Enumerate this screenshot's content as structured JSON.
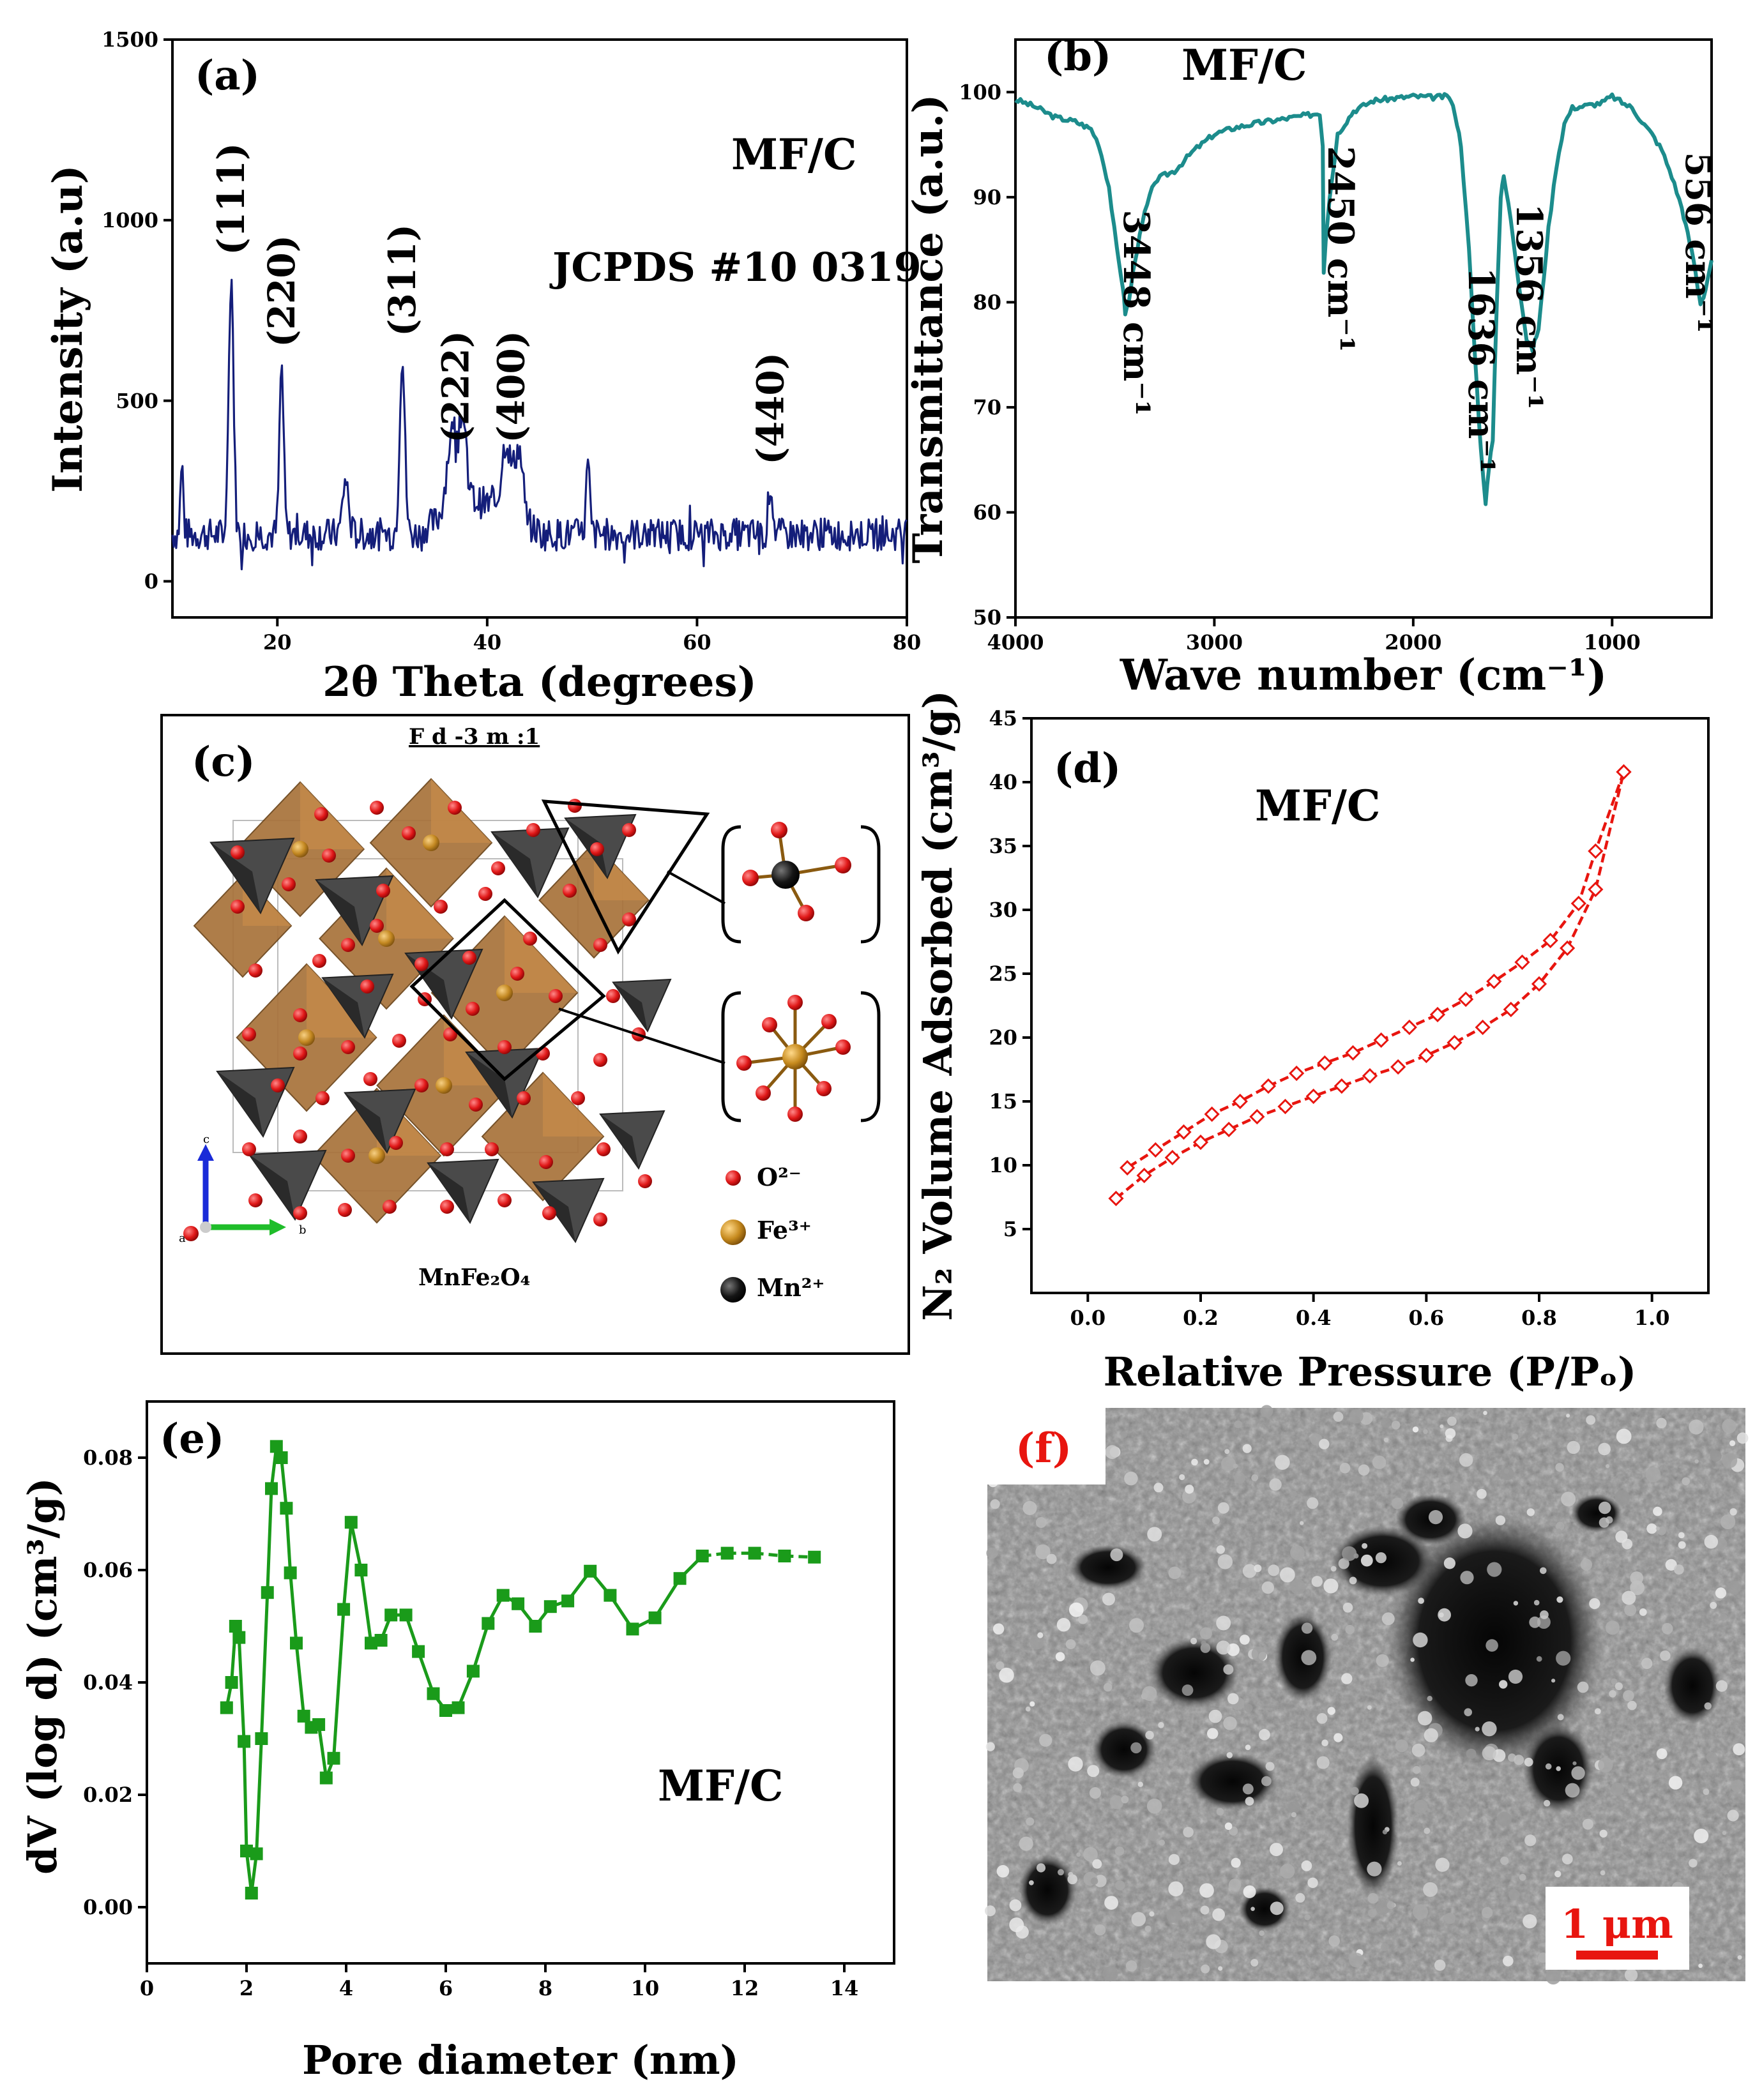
{
  "chart_data": [
    {
      "panel_label": "(a)",
      "type": "line",
      "sample_label": "MF/C",
      "reference": "JCPDS #10 0319",
      "xlabel": "2θ Theta (degrees)",
      "ylabel": "Intensity (a.u)",
      "xlim": [
        10,
        80
      ],
      "ylim": [
        -100,
        1500
      ],
      "xticks": [
        20,
        40,
        60,
        80
      ],
      "yticks": [
        0,
        500,
        1000,
        1500
      ],
      "color": "#141E7A",
      "baseline": 130,
      "noise": 45,
      "peaks": [
        {
          "x": 10.9,
          "y": 320,
          "w": 0.2
        },
        {
          "x": 15.6,
          "y": 850,
          "w": 0.32
        },
        {
          "x": 20.4,
          "y": 595,
          "w": 0.28
        },
        {
          "x": 26.5,
          "y": 280,
          "w": 0.4
        },
        {
          "x": 31.9,
          "y": 625,
          "w": 0.35
        },
        {
          "x": 36.6,
          "y": 330,
          "w": 0.7
        },
        {
          "x": 37.6,
          "y": 350,
          "w": 0.6
        },
        {
          "x": 41.8,
          "y": 330,
          "w": 0.6
        },
        {
          "x": 43.0,
          "y": 330,
          "w": 0.6
        },
        {
          "x": 49.6,
          "y": 320,
          "w": 0.25
        },
        {
          "x": 67.0,
          "y": 270,
          "w": 0.3
        }
      ],
      "annotations": [
        {
          "text": "(111)",
          "x": 15.6
        },
        {
          "text": "(220)",
          "x": 20.4
        },
        {
          "text": "(311)",
          "x": 31.9
        },
        {
          "text": "(222)",
          "x": 37.0
        },
        {
          "text": "(400)",
          "x": 42.3
        },
        {
          "text": "(440)",
          "x": 67.0
        }
      ]
    },
    {
      "panel_label": "(b)",
      "type": "line",
      "sample_label": "MF/C",
      "xlabel": "Wave number (cm⁻¹)",
      "ylabel": "Transmittance (a.u.)",
      "xlim": [
        4000,
        500
      ],
      "ylim": [
        50,
        105
      ],
      "xticks": [
        4000,
        3000,
        2000,
        1000
      ],
      "yticks": [
        50,
        60,
        70,
        80,
        90,
        100
      ],
      "color": "#1C8C8C",
      "points": [
        [
          4000,
          99.3
        ],
        [
          3900,
          98.6
        ],
        [
          3800,
          97.6
        ],
        [
          3700,
          97.2
        ],
        [
          3620,
          96.5
        ],
        [
          3580,
          95.0
        ],
        [
          3530,
          91.0
        ],
        [
          3490,
          85.0
        ],
        [
          3460,
          81.5
        ],
        [
          3448,
          79.0
        ],
        [
          3430,
          80.0
        ],
        [
          3400,
          84.0
        ],
        [
          3350,
          88.5
        ],
        [
          3300,
          91.5
        ],
        [
          3260,
          92.0
        ],
        [
          3200,
          92.5
        ],
        [
          3100,
          94.5
        ],
        [
          3000,
          96.0
        ],
        [
          2900,
          96.6
        ],
        [
          2800,
          97.0
        ],
        [
          2600,
          97.6
        ],
        [
          2470,
          98.0
        ],
        [
          2455,
          95.0
        ],
        [
          2450,
          83.0
        ],
        [
          2440,
          86.0
        ],
        [
          2420,
          90.0
        ],
        [
          2380,
          96.0
        ],
        [
          2300,
          98.2
        ],
        [
          2200,
          99.2
        ],
        [
          2000,
          99.6
        ],
        [
          1900,
          99.5
        ],
        [
          1820,
          99.6
        ],
        [
          1790,
          98.0
        ],
        [
          1760,
          95.0
        ],
        [
          1720,
          85.0
        ],
        [
          1690,
          75.0
        ],
        [
          1660,
          66.0
        ],
        [
          1636,
          61.0
        ],
        [
          1620,
          64.0
        ],
        [
          1600,
          67.0
        ],
        [
          1580,
          80.0
        ],
        [
          1560,
          90.0
        ],
        [
          1545,
          92.0
        ],
        [
          1510,
          88.0
        ],
        [
          1470,
          82.0
        ],
        [
          1430,
          76.5
        ],
        [
          1400,
          75.5
        ],
        [
          1370,
          77.5
        ],
        [
          1356,
          80.0
        ],
        [
          1320,
          87.0
        ],
        [
          1280,
          93.0
        ],
        [
          1240,
          97.0
        ],
        [
          1200,
          98.5
        ],
        [
          1100,
          98.8
        ],
        [
          1050,
          99.0
        ],
        [
          1000,
          99.6
        ],
        [
          950,
          99.0
        ],
        [
          900,
          98.5
        ],
        [
          850,
          97.2
        ],
        [
          800,
          96.0
        ],
        [
          750,
          94.5
        ],
        [
          700,
          92.0
        ],
        [
          650,
          89.0
        ],
        [
          620,
          86.5
        ],
        [
          590,
          84.0
        ],
        [
          570,
          81.5
        ],
        [
          556,
          80.0
        ],
        [
          540,
          80.5
        ],
        [
          520,
          82.0
        ],
        [
          500,
          84.0
        ]
      ],
      "annotations": [
        {
          "text": "3448 cm⁻¹",
          "x": 3448
        },
        {
          "text": "2450 cm⁻¹",
          "x": 2450
        },
        {
          "text": "1636 cm⁻¹",
          "x": 1636
        },
        {
          "text": "1356  cm⁻¹",
          "x": 1356
        },
        {
          "text": "556  cm⁻¹",
          "x": 556
        }
      ]
    },
    {
      "panel_label": "(d)",
      "type": "line",
      "sample_label": "MF/C",
      "xlabel": "Relative Pressure (P/Pₒ)",
      "ylabel": "N₂ Volume Adsorbed (cm³/g)",
      "xlim": [
        -0.1,
        1.1
      ],
      "ylim": [
        0,
        45
      ],
      "xticks": [
        0.0,
        0.2,
        0.4,
        0.6,
        0.8,
        1.0
      ],
      "yticks": [
        5,
        10,
        15,
        20,
        25,
        30,
        35,
        40,
        45
      ],
      "color": "#E8150F",
      "series": [
        {
          "name": "adsorption",
          "x": [
            0.05,
            0.1,
            0.15,
            0.2,
            0.25,
            0.3,
            0.35,
            0.4,
            0.45,
            0.5,
            0.55,
            0.6,
            0.65,
            0.7,
            0.75,
            0.8,
            0.85,
            0.9,
            0.95
          ],
          "y": [
            7.4,
            9.2,
            10.6,
            11.8,
            12.8,
            13.8,
            14.6,
            15.4,
            16.2,
            17.0,
            17.7,
            18.6,
            19.6,
            20.8,
            22.2,
            24.2,
            27.0,
            31.6,
            40.8
          ]
        },
        {
          "name": "desorption",
          "x": [
            0.95,
            0.9,
            0.87,
            0.82,
            0.77,
            0.72,
            0.67,
            0.62,
            0.57,
            0.52,
            0.47,
            0.42,
            0.37,
            0.32,
            0.27,
            0.22,
            0.17,
            0.12,
            0.07
          ],
          "y": [
            40.8,
            34.6,
            30.5,
            27.6,
            25.9,
            24.4,
            23.0,
            21.8,
            20.8,
            19.8,
            18.8,
            18.0,
            17.2,
            16.2,
            15.0,
            14.0,
            12.6,
            11.2,
            9.8
          ]
        }
      ]
    },
    {
      "panel_label": "(e)",
      "type": "line",
      "sample_label": "MF/C",
      "xlabel": "Pore diameter (nm)",
      "ylabel": "dV (log d) (cm³/g)",
      "xlim": [
        0,
        15
      ],
      "ylim": [
        -0.01,
        0.09
      ],
      "xticks": [
        0,
        2,
        4,
        6,
        8,
        10,
        12,
        14
      ],
      "yticks": [
        0.0,
        0.02,
        0.04,
        0.06,
        0.08
      ],
      "color": "#1A9B1A",
      "x": [
        1.6,
        1.7,
        1.78,
        1.85,
        1.95,
        2.0,
        2.1,
        2.2,
        2.3,
        2.42,
        2.5,
        2.6,
        2.7,
        2.8,
        2.88,
        3.0,
        3.15,
        3.3,
        3.45,
        3.6,
        3.75,
        3.95,
        4.1,
        4.3,
        4.5,
        4.7,
        4.9,
        5.2,
        5.45,
        5.75,
        6.0,
        6.25,
        6.55,
        6.85,
        7.15,
        7.45,
        7.8,
        8.1,
        8.45,
        8.9,
        9.3,
        9.75,
        10.2,
        10.7,
        11.15,
        11.65,
        12.2,
        12.8,
        13.4
      ],
      "y": [
        0.0355,
        0.04,
        0.05,
        0.048,
        0.0295,
        0.01,
        0.0025,
        0.0095,
        0.03,
        0.056,
        0.0745,
        0.082,
        0.08,
        0.071,
        0.0595,
        0.047,
        0.034,
        0.032,
        0.0325,
        0.023,
        0.0265,
        0.053,
        0.0685,
        0.06,
        0.047,
        0.0475,
        0.052,
        0.052,
        0.0455,
        0.038,
        0.035,
        0.0355,
        0.042,
        0.0505,
        0.0555,
        0.054,
        0.05,
        0.0535,
        0.0545,
        0.0598,
        0.0555,
        0.0495,
        0.0515,
        0.0585,
        0.0625,
        0.063,
        0.063,
        0.0625,
        0.0623
      ]
    }
  ],
  "crystal_panel": {
    "panel_label": "(c)",
    "space_group": "F d -3 m :1",
    "formula": "MnFe₂O₄",
    "axis_labels": [
      "c",
      "a",
      "b"
    ],
    "legend": [
      {
        "label": "O²⁻",
        "color": "#E31A1A"
      },
      {
        "label": "Fe³⁺",
        "color": "#C68A1E"
      },
      {
        "label": "Mn²⁺",
        "color": "#111111"
      }
    ]
  },
  "sem_panel": {
    "panel_label": "(f)",
    "scale_bar": "1 μm",
    "label_color": "#E8150F"
  }
}
